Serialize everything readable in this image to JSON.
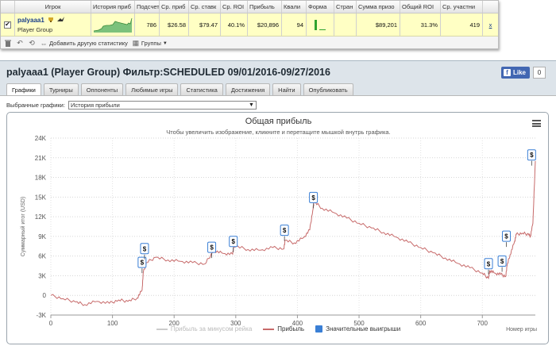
{
  "stats_table": {
    "checkbox_state": "✔",
    "headers": [
      "Игрок",
      "История приб",
      "Подсчет",
      "Ср. приб",
      "Ср. ставк",
      "Ср. ROI",
      "Прибыль",
      "Квали",
      "Форма",
      "Стран",
      "Сумма призо",
      "Общий ROI",
      "Ср. участни"
    ],
    "row": {
      "player_name": "palyaaa1",
      "player_group": "Player Group",
      "count": "786",
      "avg_profit": "$26.58",
      "avg_stake": "$79.47",
      "avg_roi": "40.1%",
      "profit": "$20,896",
      "quali": "94",
      "country": "",
      "prize_sum": "$89,201",
      "total_roi": "31.3%",
      "avg_entrants": "419",
      "remove": "x"
    },
    "toolbar": {
      "add_stats_label": "Добавить другую статистику",
      "groups_label": "Группы"
    }
  },
  "panel": {
    "title": "palyaaa1 (Player Group) Фильтр:SCHEDULED 09/01/2016-09/27/2016",
    "fb_like_label": "Like",
    "fb_like_count": "0",
    "tabs": [
      {
        "label": "Графики",
        "active": true
      },
      {
        "label": "Турниры",
        "active": false
      },
      {
        "label": "Оппоненты",
        "active": false
      },
      {
        "label": "Любимые игры",
        "active": false
      },
      {
        "label": "Статистика",
        "active": false
      },
      {
        "label": "Достижения",
        "active": false
      },
      {
        "label": "Найти",
        "active": false
      },
      {
        "label": "Опубликовать",
        "active": false
      }
    ],
    "select_label": "Выбранные графики:",
    "select_value": "История прибыли"
  },
  "colors": {
    "profit_line": "#c76a6a",
    "rake_line": "#cccccc",
    "big_win": "#3a7fd5",
    "header_bg": "#ffffc4",
    "panel_bg": "#dde4ea"
  },
  "chart_data": {
    "type": "line",
    "title": "Общая прибыль",
    "subtitle": "Чтобы увеличить изображение, кликните и перетащите мышкой внутрь графика.",
    "ylabel": "Суммарный итог (USD)",
    "xlabel": "Номер игры",
    "xlim": [
      0,
      786
    ],
    "ylim": [
      -3000,
      24000
    ],
    "x_ticks": [
      "0",
      "100",
      "200",
      "300",
      "400",
      "500",
      "600",
      "700"
    ],
    "y_ticks": [
      "-3K",
      "0",
      "3K",
      "6K",
      "9K",
      "12K",
      "15K",
      "18K",
      "21K",
      "24K"
    ],
    "grid": "dotted",
    "series": [
      {
        "name": "Прибыль",
        "x": [
          0,
          20,
          40,
          55,
          75,
          95,
          110,
          125,
          140,
          148,
          150,
          155,
          170,
          190,
          210,
          230,
          250,
          262,
          265,
          280,
          295,
          297,
          300,
          320,
          340,
          360,
          378,
          380,
          395,
          410,
          420,
          425,
          427,
          440,
          460,
          480,
          500,
          520,
          540,
          560,
          580,
          600,
          620,
          640,
          660,
          680,
          700,
          710,
          712,
          720,
          730,
          738,
          740,
          745,
          752,
          755,
          765,
          775,
          778,
          782,
          786
        ],
        "y": [
          0,
          -500,
          -1000,
          -1400,
          -900,
          -1200,
          -700,
          -900,
          -400,
          800,
          3500,
          5000,
          5800,
          5400,
          5200,
          5000,
          4800,
          6500,
          6800,
          6400,
          6300,
          7600,
          7500,
          7000,
          6900,
          7300,
          7100,
          8400,
          8000,
          8800,
          10000,
          13000,
          14300,
          13300,
          12600,
          11800,
          11000,
          10300,
          9600,
          8900,
          8100,
          7300,
          6500,
          5700,
          4900,
          4200,
          3400,
          2600,
          3800,
          3400,
          3200,
          2900,
          4500,
          6200,
          8100,
          9300,
          9500,
          9300,
          9000,
          11000,
          20500
        ]
      },
      {
        "name": "Прибыль за минусом рейка",
        "x": [],
        "y": []
      }
    ],
    "big_wins": {
      "name": "Значительные выигрыши",
      "marker": "$",
      "x": [
        148,
        152,
        261,
        296,
        379,
        426,
        710,
        732,
        739,
        780
      ],
      "y": [
        3400,
        5500,
        5700,
        6600,
        8300,
        13300,
        3200,
        3600,
        7400,
        19800
      ]
    },
    "legend": [
      "Прибыль за минусом рейка",
      "Прибыль",
      "Значительные выигрыши"
    ],
    "legend_position": "bottom-center"
  }
}
